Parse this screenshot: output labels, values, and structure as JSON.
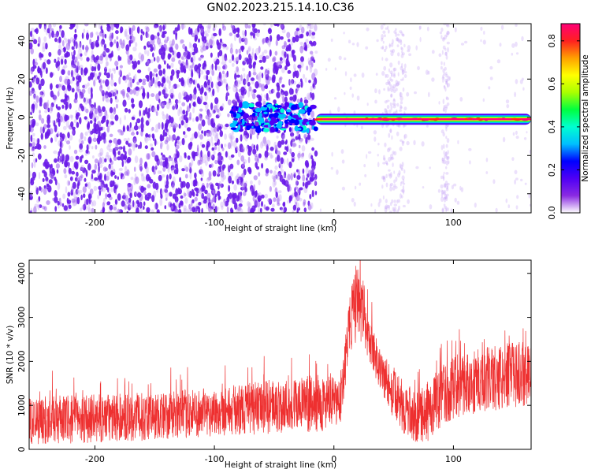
{
  "title": "GN02.2023.215.14.10.C36",
  "chart_data": [
    {
      "type": "heatmap",
      "xlabel": "Height of straight line (km)",
      "ylabel": "Frequency (Hz)",
      "xlim": [
        -255,
        165
      ],
      "ylim": [
        -50,
        49
      ],
      "xticks": [
        -200,
        -100,
        0,
        100
      ],
      "yticks": [
        -40,
        -20,
        0,
        20,
        40
      ],
      "colorbar": {
        "label": "Normalized spectral amplitude",
        "range": [
          0,
          0.88
        ],
        "ticks": [
          0.0,
          0.2,
          0.4,
          0.6,
          0.8
        ],
        "colors": [
          "#ffffff",
          "#8a2be2",
          "#4f00f5",
          "#0000ff",
          "#00bfff",
          "#00ffd0",
          "#00ff40",
          "#aaff00",
          "#ffff00",
          "#ffa000",
          "#ff2020",
          "#ff0077"
        ]
      },
      "regions": [
        {
          "x": [
            -255,
            -15
          ],
          "description": "broadband noise, amplitude ~0.1-0.15"
        },
        {
          "x": [
            -85,
            -15
          ],
          "y_center": 0,
          "amplitude": 0.35
        },
        {
          "x": [
            -15,
            165
          ],
          "y_center": -1,
          "amplitude": 0.85
        }
      ]
    },
    {
      "type": "line",
      "xlabel": "Height of straight line (km)",
      "ylabel": "SNR (10 * v/v)",
      "xlim": [
        -255,
        165
      ],
      "ylim": [
        0,
        4300
      ],
      "xticks": [
        -200,
        -100,
        0,
        100
      ],
      "yticks": [
        0,
        1000,
        2000,
        3000,
        4000
      ],
      "color": "#ee3030",
      "envelope": {
        "x": [
          -255,
          -200,
          -150,
          -100,
          -50,
          -10,
          5,
          10,
          15,
          20,
          25,
          30,
          40,
          50,
          60,
          70,
          80,
          90,
          100,
          120,
          140,
          165
        ],
        "low": [
          100,
          150,
          200,
          300,
          350,
          400,
          500,
          1500,
          2300,
          2500,
          2300,
          2000,
          1200,
          700,
          300,
          100,
          200,
          500,
          700,
          800,
          900,
          1000
        ],
        "high": [
          1200,
          1250,
          1300,
          1400,
          1600,
          1700,
          1600,
          2800,
          3800,
          4200,
          3800,
          2900,
          2300,
          1800,
          1500,
          1300,
          1600,
          1900,
          2100,
          2300,
          2400,
          2500
        ]
      }
    }
  ]
}
